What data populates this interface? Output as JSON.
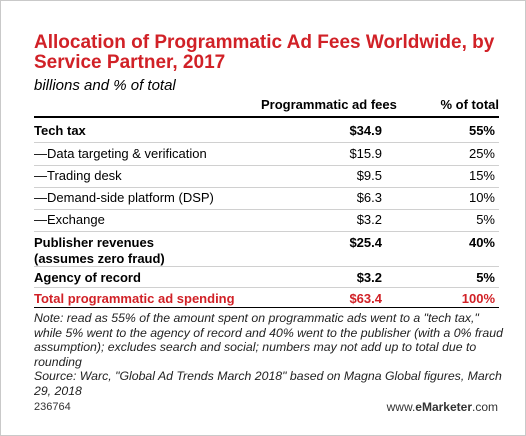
{
  "colors": {
    "accent": "#d12127",
    "text": "#000000",
    "divider": "#d0d0d0"
  },
  "title": "Allocation of Programmatic Ad Fees Worldwide, by Service Partner, 2017",
  "subtitle": "billions and % of total",
  "columns": {
    "fees": "Programmatic ad fees",
    "pct": "% of total"
  },
  "rows": [
    {
      "label": "Tech tax",
      "fees": "$34.9",
      "pct": "55%",
      "style": "bold"
    },
    {
      "label": "—Data targeting & verification",
      "fees": "$15.9",
      "pct": "25%",
      "style": "normal"
    },
    {
      "label": "—Trading desk",
      "fees": "$9.5",
      "pct": "15%",
      "style": "normal"
    },
    {
      "label": "—Demand-side platform (DSP)",
      "fees": "$6.3",
      "pct": "10%",
      "style": "normal"
    },
    {
      "label": "—Exchange",
      "fees": "$3.2",
      "pct": "5%",
      "style": "normal"
    },
    {
      "label": "Publisher revenues",
      "label_line2": "(assumes zero fraud)",
      "fees": "$25.4",
      "pct": "40%",
      "style": "bold"
    },
    {
      "label": "Agency of record",
      "fees": "$3.2",
      "pct": "5%",
      "style": "bold"
    },
    {
      "label": "Total programmatic ad spending",
      "fees": "$63.4",
      "pct": "100%",
      "style": "total"
    }
  ],
  "note": "Note: read as 55% of the amount spent on programmatic ads went to a \"tech tax,\" while 5% went to the agency of record and 40% went to the publisher (with a 0% fraud assumption); excludes search and social; numbers may not add up to total due to rounding\nSource: Warc, \"Global Ad Trends March 2018\" based on Magna Global figures, March 29, 2018",
  "footer": {
    "id": "236764",
    "brand_prefix": "www.",
    "brand_name": "eMarketer",
    "brand_suffix": ".com"
  },
  "chart_data": {
    "type": "table",
    "title": "Allocation of Programmatic Ad Fees Worldwide, by Service Partner, 2017",
    "subtitle": "billions and % of total",
    "columns": [
      "Programmatic ad fees",
      "% of total"
    ],
    "rows": [
      {
        "label": "Tech tax",
        "values": [
          "$34.9",
          "55%"
        ]
      },
      {
        "label": "—Data targeting & verification",
        "values": [
          "$15.9",
          "25%"
        ]
      },
      {
        "label": "—Trading desk",
        "values": [
          "$9.5",
          "15%"
        ]
      },
      {
        "label": "—Demand-side platform (DSP)",
        "values": [
          "$6.3",
          "10%"
        ]
      },
      {
        "label": "—Exchange",
        "values": [
          "$3.2",
          "5%"
        ]
      },
      {
        "label": "Publisher revenues (assumes zero fraud)",
        "values": [
          "$25.4",
          "40%"
        ]
      },
      {
        "label": "Agency of record",
        "values": [
          "$3.2",
          "5%"
        ]
      },
      {
        "label": "Total programmatic ad spending",
        "values": [
          "$63.4",
          "100%"
        ]
      }
    ]
  }
}
